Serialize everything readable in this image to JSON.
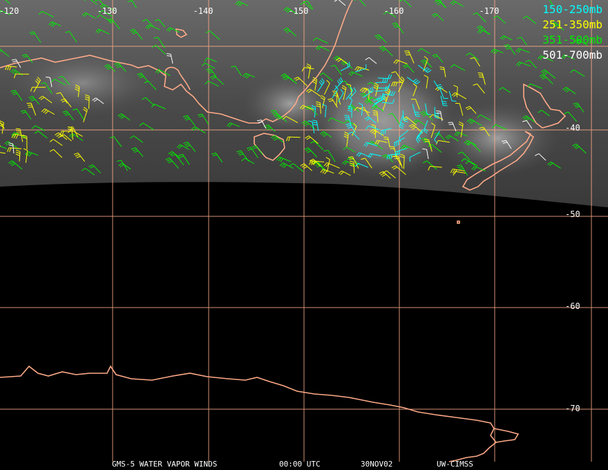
{
  "map": {
    "lon_labels": [
      "-120",
      "-130",
      "-140",
      "-150",
      "-160",
      "-170"
    ],
    "lat_labels": [
      "-40",
      "-50",
      "-60",
      "-70"
    ],
    "grid_color": "#ffaa88",
    "coast_color": "#ffaa88",
    "background": "#000000"
  },
  "legend": [
    {
      "label": "150-250mb",
      "color": "#00ffff"
    },
    {
      "label": "251-350mb",
      "color": "#ffff00"
    },
    {
      "label": "351-500mb",
      "color": "#00ee00"
    },
    {
      "label": "501-700mb",
      "color": "#ffffff"
    }
  ],
  "footer": {
    "satellite": "GMS-5 WATER VAPOR WINDS",
    "time": "00:00 UTC",
    "date": "30NOV02",
    "source": "UW-CIMSS"
  }
}
